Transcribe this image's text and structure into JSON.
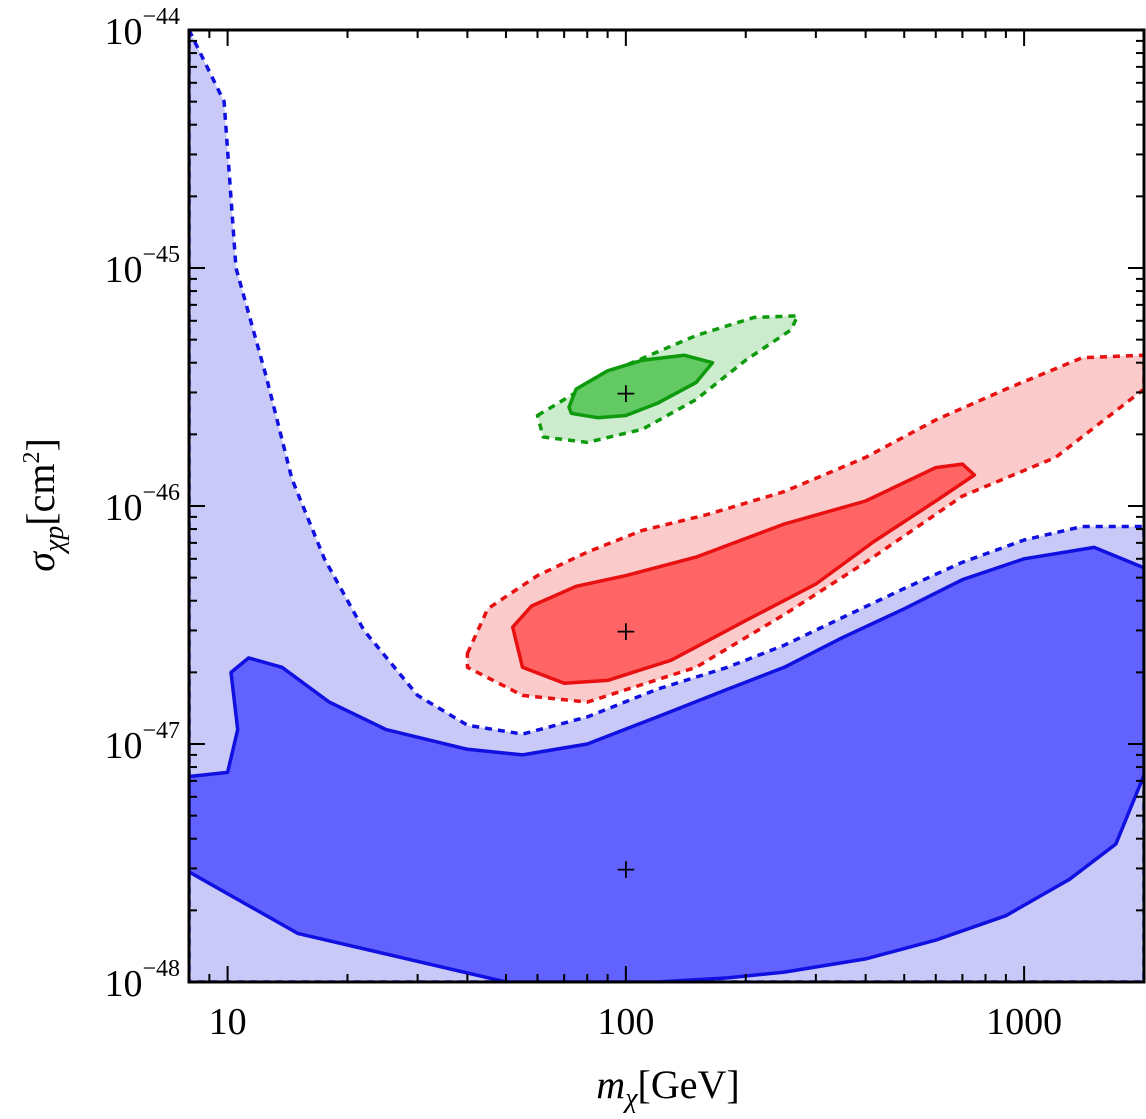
{
  "chart_data": {
    "type": "contour",
    "xlabel": {
      "main": "m",
      "sub": "χ",
      "unit": "[GeV]"
    },
    "ylabel": {
      "main": "σ",
      "sub": "χp",
      "unit_prefix": "[cm",
      "unit_sup": "2",
      "unit_suffix": "]"
    },
    "xscale": "log",
    "yscale": "log",
    "xlim": [
      8,
      2000
    ],
    "ylim": [
      1e-48,
      1e-44
    ],
    "x_ticks": [
      {
        "value": 10,
        "label": "10"
      },
      {
        "value": 100,
        "label": "100"
      },
      {
        "value": 1000,
        "label": "1000"
      }
    ],
    "y_ticks": [
      {
        "value": 1e-48,
        "base": "10",
        "exp": "−48"
      },
      {
        "value": 1e-47,
        "base": "10",
        "exp": "−47"
      },
      {
        "value": 1e-46,
        "base": "10",
        "exp": "−46"
      },
      {
        "value": 1e-45,
        "base": "10",
        "exp": "−45"
      },
      {
        "value": 1e-44,
        "base": "10",
        "exp": "−44"
      }
    ],
    "series": [
      {
        "name": "blue",
        "colors": {
          "line": "#1010e0",
          "inner_fill": "#6262ff",
          "outer_fill": "#c9c9f7"
        },
        "benchmark": {
          "mass": 100,
          "sigma": 3e-48
        },
        "outer": [
          [
            8,
            1e-44
          ],
          [
            9.8,
            5e-45
          ],
          [
            10.5,
            1e-45
          ],
          [
            12.5,
            3.5e-46
          ],
          [
            14.5,
            1.3e-46
          ],
          [
            17.5,
            6e-47
          ],
          [
            22,
            3e-47
          ],
          [
            30,
            1.6e-47
          ],
          [
            40,
            1.2e-47
          ],
          [
            55,
            1.1e-47
          ],
          [
            80,
            1.3e-47
          ],
          [
            120,
            1.7e-47
          ],
          [
            180,
            2.1e-47
          ],
          [
            250,
            2.6e-47
          ],
          [
            350,
            3.4e-47
          ],
          [
            500,
            4.5e-47
          ],
          [
            700,
            5.8e-47
          ],
          [
            1000,
            7.2e-47
          ],
          [
            1400,
            8.2e-47
          ],
          [
            2000,
            8.2e-47
          ],
          [
            2000,
            1e-48
          ],
          [
            8,
            1e-48
          ]
        ],
        "inner": [
          [
            8,
            7.3e-48
          ],
          [
            10,
            7.6e-48
          ],
          [
            10.6,
            1.15e-47
          ],
          [
            10.2,
            2e-47
          ],
          [
            11.3,
            2.3e-47
          ],
          [
            13.7,
            2.1e-47
          ],
          [
            18,
            1.5e-47
          ],
          [
            25,
            1.15e-47
          ],
          [
            40,
            9.5e-48
          ],
          [
            55,
            9e-48
          ],
          [
            80,
            1e-47
          ],
          [
            120,
            1.3e-47
          ],
          [
            180,
            1.7e-47
          ],
          [
            250,
            2.1e-47
          ],
          [
            350,
            2.8e-47
          ],
          [
            500,
            3.7e-47
          ],
          [
            700,
            4.9e-47
          ],
          [
            1000,
            6e-47
          ],
          [
            1500,
            6.7e-47
          ],
          [
            2000,
            5.5e-47
          ],
          [
            2000,
            7.4e-48
          ],
          [
            1700,
            3.8e-48
          ],
          [
            1300,
            2.7e-48
          ],
          [
            900,
            1.9e-48
          ],
          [
            600,
            1.5e-48
          ],
          [
            400,
            1.25e-48
          ],
          [
            250,
            1.1e-48
          ],
          [
            180,
            1.04e-48
          ],
          [
            120,
            1e-48
          ],
          [
            50,
            1e-48
          ],
          [
            15,
            1.6e-48
          ],
          [
            8,
            2.9e-48
          ]
        ]
      },
      {
        "name": "red",
        "colors": {
          "line": "#e81010",
          "inner_fill": "#ff6565",
          "outer_fill": "#fbcaca"
        },
        "benchmark": {
          "mass": 100,
          "sigma": 3e-47
        },
        "outer": [
          [
            40,
            2.4e-47
          ],
          [
            45,
            3.7e-47
          ],
          [
            60,
            5.1e-47
          ],
          [
            80,
            6.4e-47
          ],
          [
            110,
            7.9e-47
          ],
          [
            160,
            9.2e-47
          ],
          [
            250,
            1.15e-46
          ],
          [
            400,
            1.6e-46
          ],
          [
            600,
            2.3e-46
          ],
          [
            900,
            3.1e-46
          ],
          [
            1400,
            4.2e-46
          ],
          [
            2000,
            4.3e-46
          ],
          [
            2000,
            3.1e-46
          ],
          [
            1200,
            1.6e-46
          ],
          [
            700,
            1.1e-46
          ],
          [
            400,
            5.8e-47
          ],
          [
            250,
            3.5e-47
          ],
          [
            150,
            2.1e-47
          ],
          [
            80,
            1.5e-47
          ],
          [
            55,
            1.6e-47
          ],
          [
            40,
            2.1e-47
          ]
        ],
        "inner": [
          [
            52,
            3.1e-47
          ],
          [
            58,
            3.8e-47
          ],
          [
            75,
            4.6e-47
          ],
          [
            100,
            5.1e-47
          ],
          [
            150,
            6.1e-47
          ],
          [
            250,
            8.4e-47
          ],
          [
            400,
            1.05e-46
          ],
          [
            600,
            1.45e-46
          ],
          [
            700,
            1.5e-46
          ],
          [
            750,
            1.35e-46
          ],
          [
            600,
            1.05e-46
          ],
          [
            420,
            7.1e-47
          ],
          [
            300,
            4.7e-47
          ],
          [
            200,
            3.3e-47
          ],
          [
            130,
            2.25e-47
          ],
          [
            90,
            1.85e-47
          ],
          [
            70,
            1.8e-47
          ],
          [
            55,
            2.1e-47
          ]
        ]
      },
      {
        "name": "green",
        "colors": {
          "line": "#0d9a0d",
          "inner_fill": "#63c963",
          "outer_fill": "#cdeccd"
        },
        "benchmark": {
          "mass": 100,
          "sigma": 3e-46
        },
        "outer": [
          [
            60,
            2.4e-46
          ],
          [
            75,
            3e-46
          ],
          [
            100,
            3.9e-46
          ],
          [
            150,
            5.2e-46
          ],
          [
            210,
            6.2e-46
          ],
          [
            270,
            6.3e-46
          ],
          [
            260,
            5.5e-46
          ],
          [
            200,
            4.1e-46
          ],
          [
            150,
            2.8e-46
          ],
          [
            110,
            2.1e-46
          ],
          [
            80,
            1.85e-46
          ],
          [
            62,
            1.95e-46
          ]
        ],
        "inner": [
          [
            72,
            2.6e-46
          ],
          [
            75,
            3.1e-46
          ],
          [
            90,
            3.7e-46
          ],
          [
            110,
            4.1e-46
          ],
          [
            140,
            4.3e-46
          ],
          [
            165,
            4e-46
          ],
          [
            150,
            3.3e-46
          ],
          [
            120,
            2.7e-46
          ],
          [
            100,
            2.4e-46
          ],
          [
            85,
            2.35e-46
          ],
          [
            73,
            2.45e-46
          ]
        ]
      }
    ],
    "markers": [
      {
        "mass": 100,
        "sigma": 3e-46,
        "symbol": "+"
      },
      {
        "mass": 100,
        "sigma": 3e-47,
        "symbol": "+"
      },
      {
        "mass": 100,
        "sigma": 3e-48,
        "symbol": "+"
      }
    ]
  }
}
